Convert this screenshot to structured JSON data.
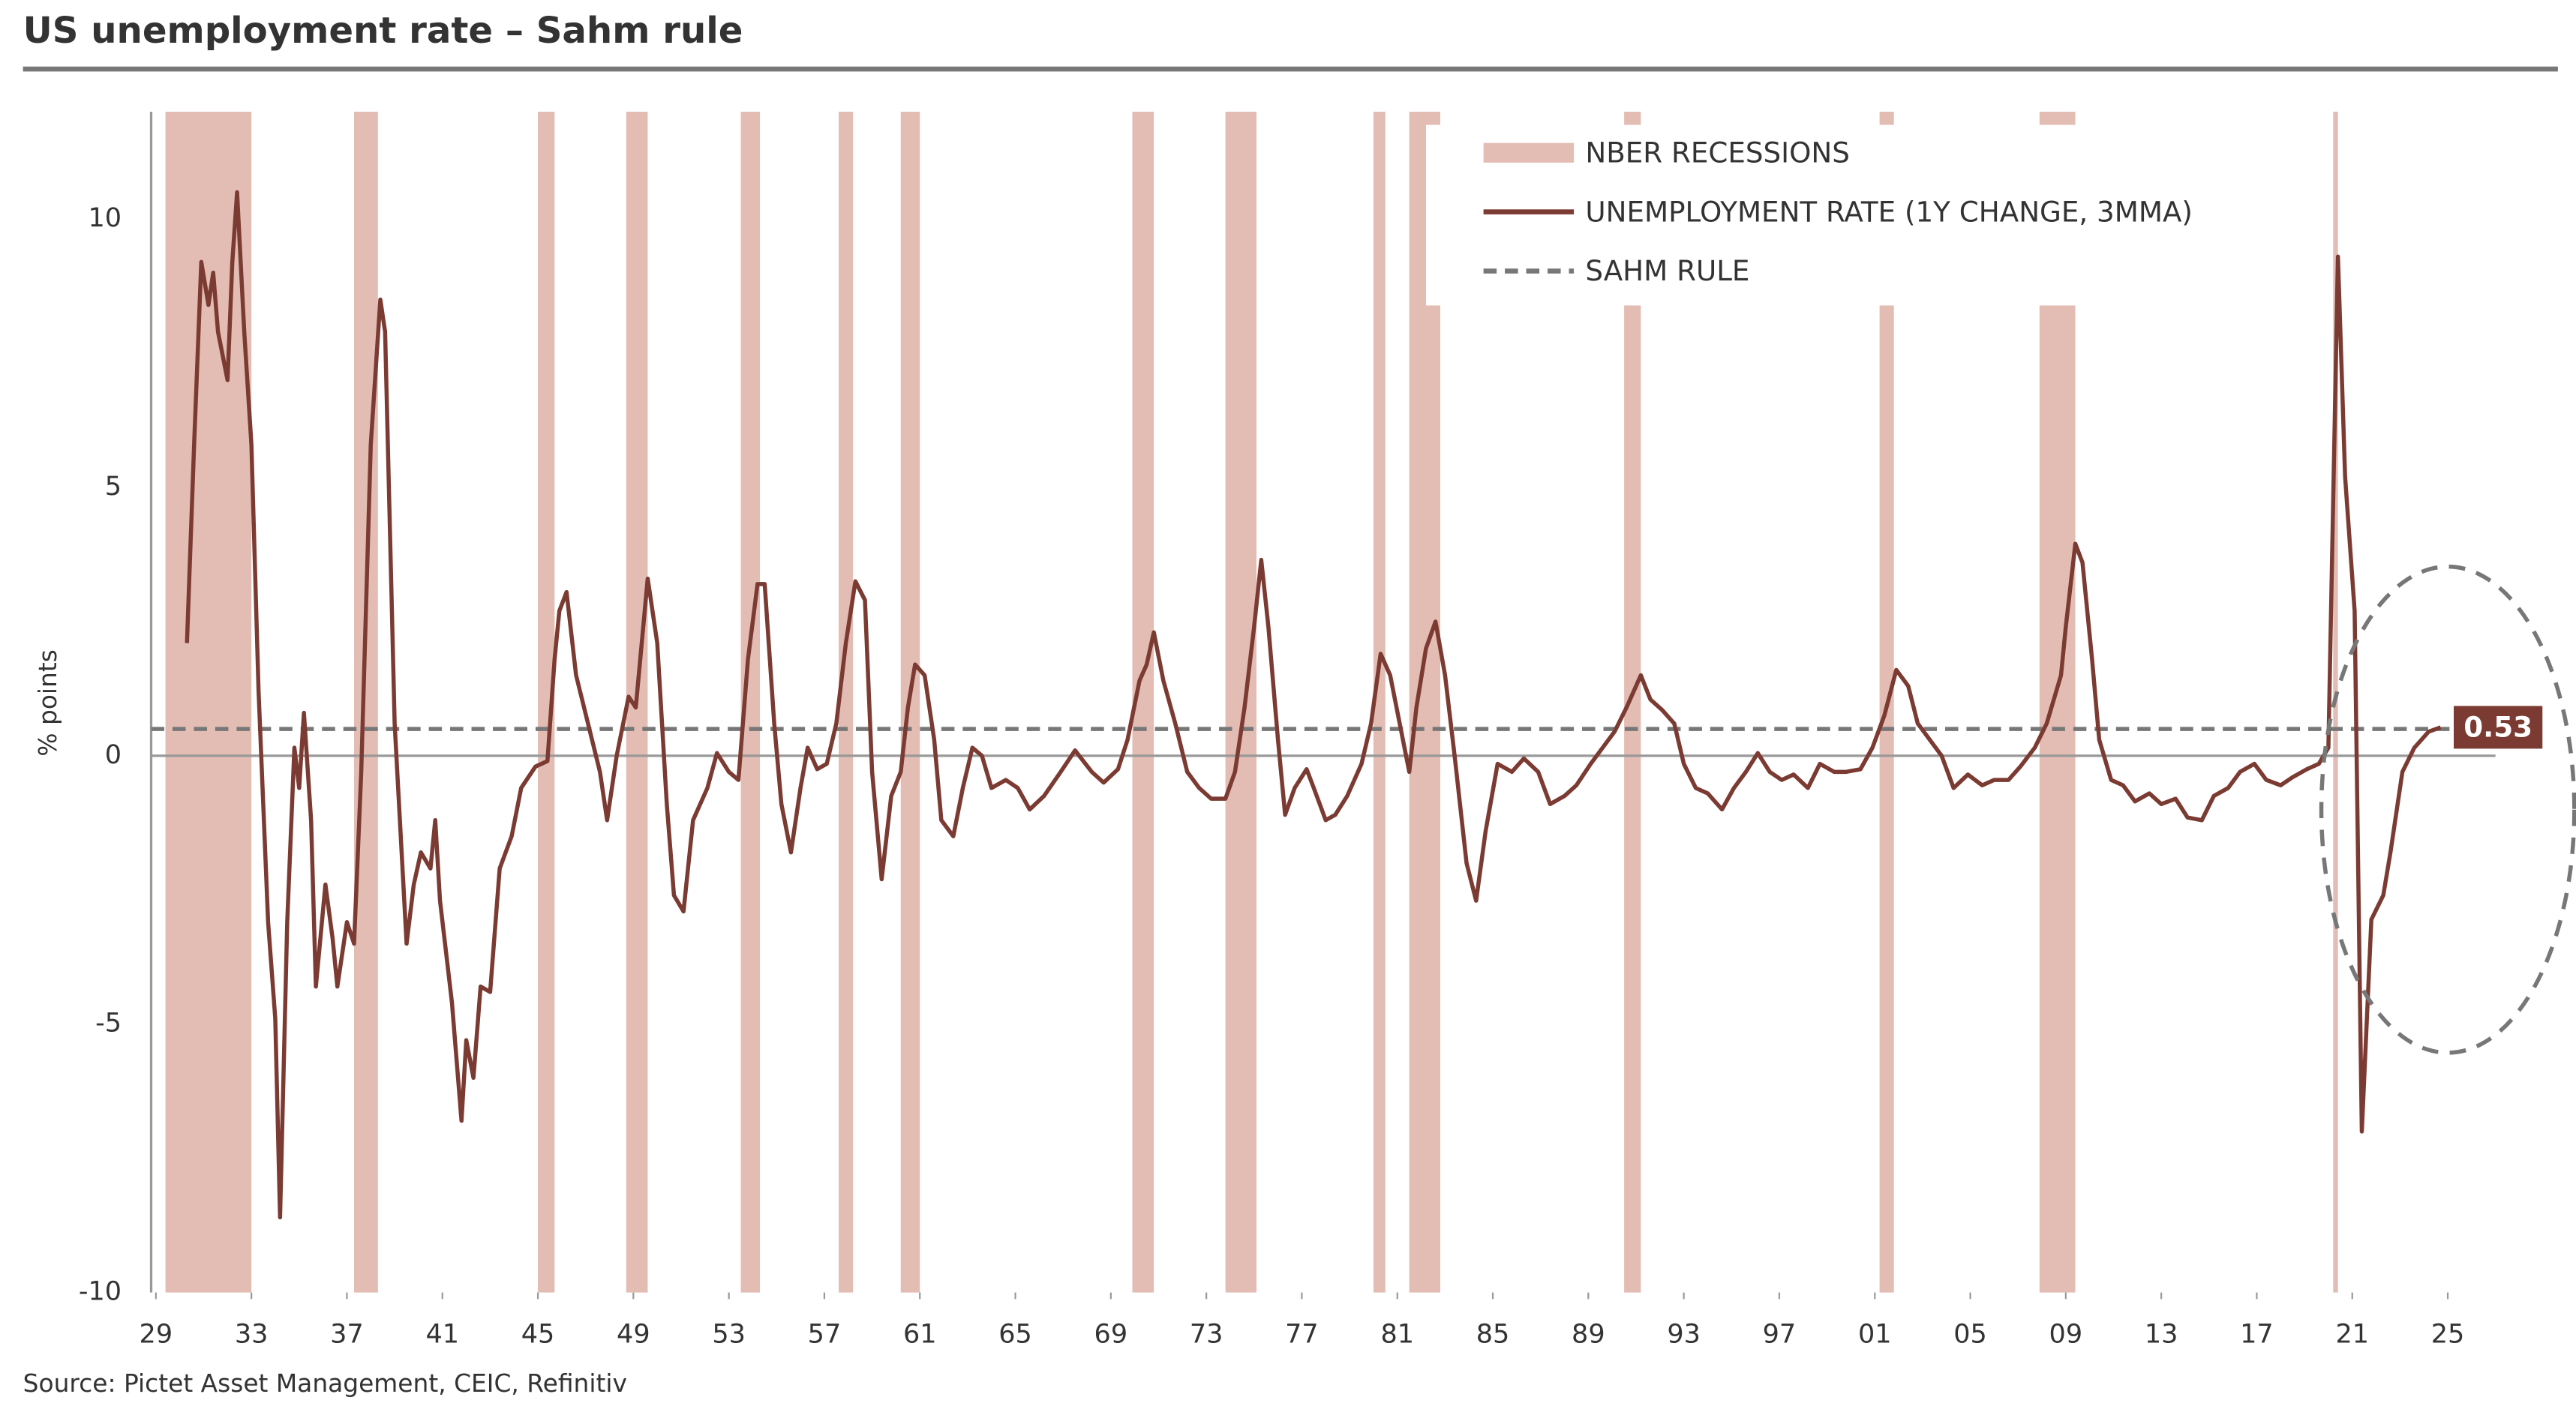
{
  "chart_data": {
    "type": "line",
    "title": "US unemployment rate – Sahm rule",
    "y_label": "% points",
    "source": "Source: Pictet Asset Management, CEIC, Refinitiv",
    "xlim": [
      1928.8,
      2027
    ],
    "ylim": [
      -10,
      12
    ],
    "xticks": [
      {
        "value": 1929,
        "label": "29"
      },
      {
        "value": 1933,
        "label": "33"
      },
      {
        "value": 1937,
        "label": "37"
      },
      {
        "value": 1941,
        "label": "41"
      },
      {
        "value": 1945,
        "label": "45"
      },
      {
        "value": 1949,
        "label": "49"
      },
      {
        "value": 1953,
        "label": "53"
      },
      {
        "value": 1957,
        "label": "57"
      },
      {
        "value": 1961,
        "label": "61"
      },
      {
        "value": 1965,
        "label": "65"
      },
      {
        "value": 1969,
        "label": "69"
      },
      {
        "value": 1973,
        "label": "73"
      },
      {
        "value": 1977,
        "label": "77"
      },
      {
        "value": 1981,
        "label": "81"
      },
      {
        "value": 1985,
        "label": "85"
      },
      {
        "value": 1989,
        "label": "89"
      },
      {
        "value": 1993,
        "label": "93"
      },
      {
        "value": 1997,
        "label": "97"
      },
      {
        "value": 2001,
        "label": "01"
      },
      {
        "value": 2005,
        "label": "05"
      },
      {
        "value": 2009,
        "label": "09"
      },
      {
        "value": 2013,
        "label": "13"
      },
      {
        "value": 2017,
        "label": "17"
      },
      {
        "value": 2021,
        "label": "21"
      },
      {
        "value": 2025,
        "label": "25"
      }
    ],
    "yticks": [
      -10,
      -5,
      0,
      5,
      10
    ],
    "recessions": {
      "name": "NBER RECESSIONS",
      "color": "#e3bdb4",
      "periods": [
        [
          1929.4,
          1933.0
        ],
        [
          1937.3,
          1938.3
        ],
        [
          1945.0,
          1945.7
        ],
        [
          1948.7,
          1949.6
        ],
        [
          1953.5,
          1954.3
        ],
        [
          1957.6,
          1958.2
        ],
        [
          1960.2,
          1961.0
        ],
        [
          1969.9,
          1970.8
        ],
        [
          1973.8,
          1975.1
        ],
        [
          1980.0,
          1980.5
        ],
        [
          1981.5,
          1982.8
        ],
        [
          1990.5,
          1991.2
        ],
        [
          2001.2,
          2001.8
        ],
        [
          2007.9,
          2009.4
        ],
        [
          2020.2,
          2020.4
        ]
      ]
    },
    "series": [
      {
        "name": "UNEMPLOYMENT RATE (1Y CHANGE, 3MMA)",
        "color": "#7b3b32",
        "x": [
          1930.3,
          1930.6,
          1930.9,
          1931.2,
          1931.4,
          1931.6,
          1932.0,
          1932.2,
          1932.4,
          1932.7,
          1933.0,
          1933.3,
          1933.7,
          1934.0,
          1934.2,
          1934.5,
          1934.8,
          1935.0,
          1935.2,
          1935.5,
          1935.7,
          1936.1,
          1936.4,
          1936.6,
          1937.0,
          1937.3,
          1937.6,
          1938.0,
          1938.4,
          1938.6,
          1939.0,
          1939.5,
          1939.8,
          1940.1,
          1940.5,
          1940.7,
          1940.9,
          1941.4,
          1941.8,
          1942.0,
          1942.3,
          1942.6,
          1943.0,
          1943.4,
          1943.9,
          1944.3,
          1944.9,
          1945.4,
          1945.7,
          1945.9,
          1946.2,
          1946.6,
          1947.1,
          1947.6,
          1947.9,
          1948.3,
          1948.8,
          1949.1,
          1949.6,
          1950.0,
          1950.4,
          1950.7,
          1951.1,
          1951.5,
          1952.1,
          1952.5,
          1953.0,
          1953.4,
          1953.8,
          1954.2,
          1954.5,
          1954.9,
          1955.2,
          1955.6,
          1956.0,
          1956.3,
          1956.7,
          1957.1,
          1957.5,
          1957.9,
          1958.3,
          1958.7,
          1959.0,
          1959.4,
          1959.8,
          1960.2,
          1960.5,
          1960.8,
          1961.2,
          1961.6,
          1961.9,
          1962.4,
          1962.8,
          1963.2,
          1963.6,
          1964.0,
          1964.6,
          1965.1,
          1965.6,
          1966.2,
          1966.9,
          1967.5,
          1968.2,
          1968.7,
          1969.3,
          1969.7,
          1970.2,
          1970.5,
          1970.8,
          1971.2,
          1971.7,
          1972.2,
          1972.7,
          1973.2,
          1973.8,
          1974.2,
          1974.6,
          1975.0,
          1975.3,
          1975.6,
          1976.0,
          1976.3,
          1976.7,
          1977.2,
          1977.5,
          1978.0,
          1978.4,
          1978.9,
          1979.5,
          1979.9,
          1980.3,
          1980.7,
          1981.1,
          1981.5,
          1981.8,
          1982.2,
          1982.6,
          1983.0,
          1983.4,
          1983.9,
          1984.3,
          1984.7,
          1985.2,
          1985.8,
          1986.3,
          1986.9,
          1987.4,
          1988.0,
          1988.5,
          1989.1,
          1989.6,
          1990.1,
          1990.6,
          1991.2,
          1991.6,
          1992.1,
          1992.6,
          1993.0,
          1993.5,
          1994.0,
          1994.6,
          1995.1,
          1995.6,
          1996.1,
          1996.6,
          1997.1,
          1997.6,
          1998.2,
          1998.7,
          1999.3,
          1999.8,
          2000.4,
          2000.9,
          2001.4,
          2001.9,
          2002.4,
          2002.8,
          2003.3,
          2003.8,
          2004.3,
          2004.9,
          2005.5,
          2006.0,
          2006.6,
          2007.1,
          2007.7,
          2008.2,
          2008.8,
          2009.0,
          2009.4,
          2009.7,
          2010.1,
          2010.4,
          2010.9,
          2011.4,
          2011.9,
          2012.5,
          2013.0,
          2013.6,
          2014.1,
          2014.7,
          2015.2,
          2015.8,
          2016.3,
          2016.9,
          2017.4,
          2018.0,
          2018.5,
          2019.1,
          2019.6,
          2020.0,
          2020.4,
          2020.7,
          2021.1,
          2021.4,
          2021.8,
          2022.3,
          2022.6,
          2023.1,
          2023.6,
          2024.2,
          2024.7
        ],
        "values": [
          2.1,
          5.8,
          9.2,
          8.4,
          9.0,
          7.9,
          7.0,
          9.2,
          10.5,
          7.9,
          5.8,
          1.2,
          -3.1,
          -4.9,
          -8.6,
          -3.1,
          0.15,
          -0.6,
          0.8,
          -1.2,
          -4.3,
          -2.4,
          -3.4,
          -4.3,
          -3.1,
          -3.5,
          -0.3,
          5.8,
          8.5,
          7.9,
          0.6,
          -3.5,
          -2.4,
          -1.8,
          -2.1,
          -1.2,
          -2.7,
          -4.6,
          -6.8,
          -5.3,
          -6.0,
          -4.3,
          -4.4,
          -2.1,
          -1.5,
          -0.6,
          -0.2,
          -0.1,
          1.8,
          2.7,
          3.05,
          1.5,
          0.6,
          -0.3,
          -1.2,
          0.0,
          1.1,
          0.9,
          3.3,
          2.1,
          -0.9,
          -2.6,
          -2.9,
          -1.2,
          -0.6,
          0.05,
          -0.3,
          -0.45,
          1.8,
          3.2,
          3.2,
          0.6,
          -0.9,
          -1.8,
          -0.6,
          0.15,
          -0.25,
          -0.15,
          0.6,
          2.1,
          3.25,
          2.9,
          -0.3,
          -2.3,
          -0.75,
          -0.3,
          0.9,
          1.7,
          1.5,
          0.3,
          -1.2,
          -1.5,
          -0.6,
          0.15,
          0.0,
          -0.6,
          -0.45,
          -0.6,
          -1.0,
          -0.75,
          -0.3,
          0.1,
          -0.3,
          -0.5,
          -0.25,
          0.3,
          1.4,
          1.7,
          2.3,
          1.4,
          0.6,
          -0.3,
          -0.6,
          -0.8,
          -0.8,
          -0.3,
          0.9,
          2.4,
          3.65,
          2.4,
          0.3,
          -1.1,
          -0.6,
          -0.25,
          -0.6,
          -1.2,
          -1.1,
          -0.75,
          -0.15,
          0.6,
          1.9,
          1.5,
          0.6,
          -0.3,
          0.9,
          2.0,
          2.5,
          1.5,
          0.0,
          -2.0,
          -2.7,
          -1.4,
          -0.15,
          -0.3,
          -0.05,
          -0.3,
          -0.9,
          -0.75,
          -0.55,
          -0.15,
          0.15,
          0.45,
          0.9,
          1.5,
          1.05,
          0.85,
          0.6,
          -0.15,
          -0.6,
          -0.7,
          -1.0,
          -0.6,
          -0.3,
          0.05,
          -0.3,
          -0.45,
          -0.35,
          -0.6,
          -0.15,
          -0.3,
          -0.3,
          -0.25,
          0.15,
          0.75,
          1.6,
          1.3,
          0.6,
          0.3,
          0.0,
          -0.6,
          -0.35,
          -0.55,
          -0.45,
          -0.45,
          -0.2,
          0.15,
          0.6,
          1.5,
          2.4,
          3.95,
          3.6,
          1.8,
          0.3,
          -0.45,
          -0.55,
          -0.85,
          -0.7,
          -0.9,
          -0.8,
          -1.15,
          -1.2,
          -0.75,
          -0.6,
          -0.3,
          -0.15,
          -0.45,
          -0.55,
          -0.4,
          -0.25,
          -0.15,
          0.15,
          9.3,
          5.2,
          2.7,
          -7.0,
          -3.05,
          -2.6,
          -1.8,
          -0.3,
          0.15,
          0.45,
          0.53
        ]
      }
    ],
    "sahm_rule": {
      "name": "SAHM RULE",
      "value": 0.5,
      "color": "#777777"
    },
    "latest_value": 0.53
  }
}
